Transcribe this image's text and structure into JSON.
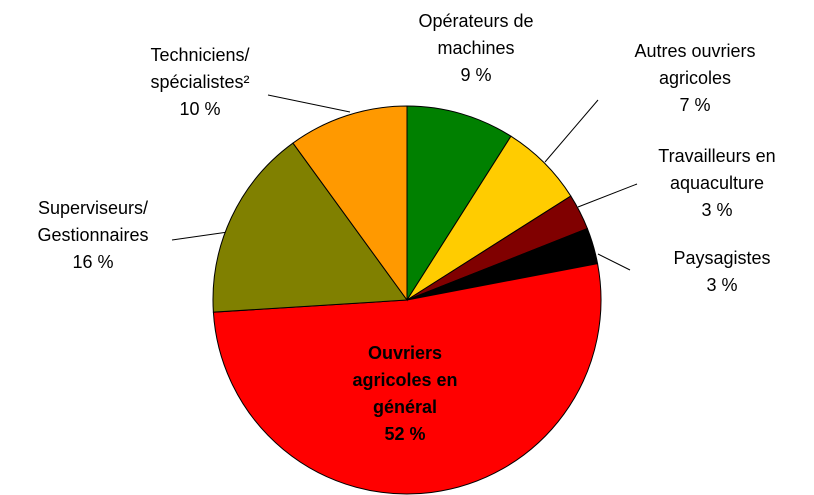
{
  "chart_data": {
    "type": "pie",
    "categories": [
      "Opérateurs de\nmachines",
      "Autres ouvriers\nagricoles",
      "Travailleurs en\naquaculture",
      "Paysagistes",
      "Ouvriers\nagricoles en\ngénéral",
      "Superviseurs/\nGestionnaires",
      "Techniciens/\nspécialistes²"
    ],
    "values": [
      9,
      7,
      3,
      3,
      52,
      16,
      10
    ],
    "value_labels": [
      "9 %",
      "7 %",
      "3 %",
      "3 %",
      "52 %",
      "16 %",
      "10 %"
    ],
    "colors": [
      "#008000",
      "#ffcc00",
      "#800000",
      "#000000",
      "#ff0000",
      "#808000",
      "#ff9900"
    ]
  }
}
